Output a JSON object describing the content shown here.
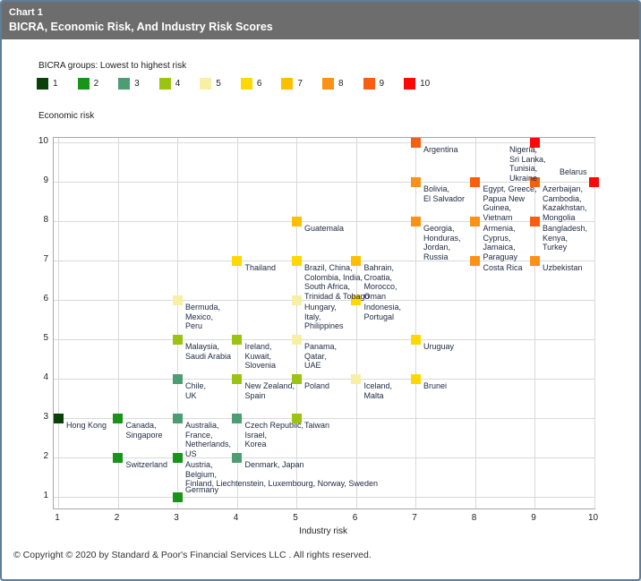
{
  "header": {
    "kicker": "Chart 1",
    "title": "BICRA, Economic Risk, And Industry Risk Scores"
  },
  "legend": {
    "caption": "BICRA groups: Lowest to highest risk",
    "groups": [
      {
        "label": "1",
        "color": "#0b4108"
      },
      {
        "label": "2",
        "color": "#189418"
      },
      {
        "label": "3",
        "color": "#4d9d72"
      },
      {
        "label": "4",
        "color": "#9ac410"
      },
      {
        "label": "5",
        "color": "#f7efa3"
      },
      {
        "label": "6",
        "color": "#fed800"
      },
      {
        "label": "7",
        "color": "#fcbf01"
      },
      {
        "label": "8",
        "color": "#fb9117"
      },
      {
        "label": "9",
        "color": "#f95d0f"
      },
      {
        "label": "10",
        "color": "#fb0905"
      }
    ]
  },
  "chart_data": {
    "type": "scatter",
    "xlabel": "Industry risk",
    "ylabel": "Economic risk",
    "xlim": [
      1,
      10
    ],
    "ylim": [
      1,
      10
    ],
    "x_ticks": [
      "1",
      "2",
      "3",
      "4",
      "5",
      "6",
      "7",
      "8",
      "9",
      "10"
    ],
    "y_ticks": [
      "10",
      "9",
      "8",
      "7",
      "6",
      "5",
      "4",
      "3",
      "2",
      "1"
    ],
    "grid": true,
    "points": [
      {
        "x": 1,
        "y": 3,
        "group": 1,
        "label": "Hong Kong",
        "labelPos": "br"
      },
      {
        "x": 2,
        "y": 3,
        "group": 2,
        "label": "Canada,\nSingapore",
        "labelPos": "br"
      },
      {
        "x": 2,
        "y": 2,
        "group": 2,
        "label": "Switzerland",
        "labelPos": "br"
      },
      {
        "x": 3,
        "y": 3,
        "group": 3,
        "label": "Australia,\nFrance,\nNetherlands,\nUS",
        "labelPos": "br"
      },
      {
        "x": 3,
        "y": 2,
        "group": 2,
        "label": "Austria,\nBelgium,\nFinland, Liechtenstein, Luxembourg, Norway, Sweden",
        "labelPos": "br"
      },
      {
        "x": 3,
        "y": 1,
        "group": 2,
        "label": "Germany",
        "labelPos": "tr"
      },
      {
        "x": 4,
        "y": 2,
        "group": 3,
        "label": "Denmark, Japan",
        "labelPos": "br"
      },
      {
        "x": 4,
        "y": 3,
        "group": 3,
        "label": "Czech Republic,\nIsrael,\nKorea",
        "labelPos": "br"
      },
      {
        "x": 5,
        "y": 3,
        "group": 4,
        "label": "Taiwan",
        "labelPos": "br"
      },
      {
        "x": 3,
        "y": 4,
        "group": 3,
        "label": "Chile,\nUK",
        "labelPos": "br"
      },
      {
        "x": 4,
        "y": 4,
        "group": 4,
        "label": "New Zealand,\nSpain",
        "labelPos": "br"
      },
      {
        "x": 5,
        "y": 4,
        "group": 4,
        "label": "Poland",
        "labelPos": "br"
      },
      {
        "x": 6,
        "y": 4,
        "group": 5,
        "label": "Iceland,\nMalta",
        "labelPos": "br"
      },
      {
        "x": 7,
        "y": 4,
        "group": 6,
        "label": "Brunei",
        "labelPos": "br"
      },
      {
        "x": 3,
        "y": 5,
        "group": 4,
        "label": "Malaysia,\nSaudi Arabia",
        "labelPos": "br"
      },
      {
        "x": 4,
        "y": 5,
        "group": 4,
        "label": "Ireland,\nKuwait,\nSlovenia",
        "labelPos": "br"
      },
      {
        "x": 5,
        "y": 5,
        "group": 5,
        "label": "Panama,\nQatar,\nUAE",
        "labelPos": "br"
      },
      {
        "x": 7,
        "y": 5,
        "group": 6,
        "label": "Uruguay",
        "labelPos": "br"
      },
      {
        "x": 3,
        "y": 6,
        "group": 5,
        "label": "Bermuda,\nMexico,\nPeru",
        "labelPos": "br"
      },
      {
        "x": 5,
        "y": 6,
        "group": 5,
        "label": "Hungary,\nItaly,\nPhilippines",
        "labelPos": "br"
      },
      {
        "x": 6,
        "y": 6,
        "group": 6,
        "label": "Indonesia,\nPortugal",
        "labelPos": "br"
      },
      {
        "x": 4,
        "y": 7,
        "group": 6,
        "label": "Thailand",
        "labelPos": "br"
      },
      {
        "x": 5,
        "y": 7,
        "group": 6,
        "label": "Brazil, China,\nColombia, India,\nSouth Africa,\nTrinidad & Tobago",
        "labelPos": "br"
      },
      {
        "x": 6,
        "y": 7,
        "group": 7,
        "label": "Bahrain,\nCroatia,\nMorocco,\nOman",
        "labelPos": "br"
      },
      {
        "x": 8,
        "y": 7,
        "group": 8,
        "label": "Costa Rica",
        "labelPos": "br"
      },
      {
        "x": 9,
        "y": 7,
        "group": 8,
        "label": "Uzbekistan",
        "labelPos": "br"
      },
      {
        "x": 5,
        "y": 8,
        "group": 7,
        "label": "Guatemala",
        "labelPos": "br"
      },
      {
        "x": 7,
        "y": 8,
        "group": 8,
        "label": "Georgia,\nHonduras,\nJordan,\nRussia",
        "labelPos": "br"
      },
      {
        "x": 8,
        "y": 8,
        "group": 8,
        "label": "Armenia,\nCyprus,\nJamaica,\nParaguay",
        "labelPos": "br"
      },
      {
        "x": 9,
        "y": 8,
        "group": 9,
        "label": "Bangladesh,\nKenya,\nTurkey",
        "labelPos": "br"
      },
      {
        "x": 7,
        "y": 9,
        "group": 8,
        "label": "Bolivia,\nEl Salvador",
        "labelPos": "br"
      },
      {
        "x": 8,
        "y": 9,
        "group": 9,
        "label": "Egypt, Greece,\nPapua New\nGuinea,\nVietnam",
        "labelPos": "br"
      },
      {
        "x": 9,
        "y": 9,
        "group": 9,
        "label": "Azerbaijan,\nCambodia,\nKazakhstan,\nMongolia",
        "labelPos": "br"
      },
      {
        "x": 10,
        "y": 9,
        "group": 10,
        "label": "Belarus",
        "labelPos": "tl"
      },
      {
        "x": 7,
        "y": 10,
        "group": 9,
        "label": "Argentina",
        "labelPos": "br"
      },
      {
        "x": 9,
        "y": 10,
        "group": 10,
        "label": "Nigeria,\nSri Lanka,\nTunisia,\nUkraine",
        "labelPos": "bl"
      }
    ]
  },
  "footer": {
    "copyright": "© Copyright © 2020 by Standard & Poor's Financial Services LLC . All rights reserved."
  }
}
